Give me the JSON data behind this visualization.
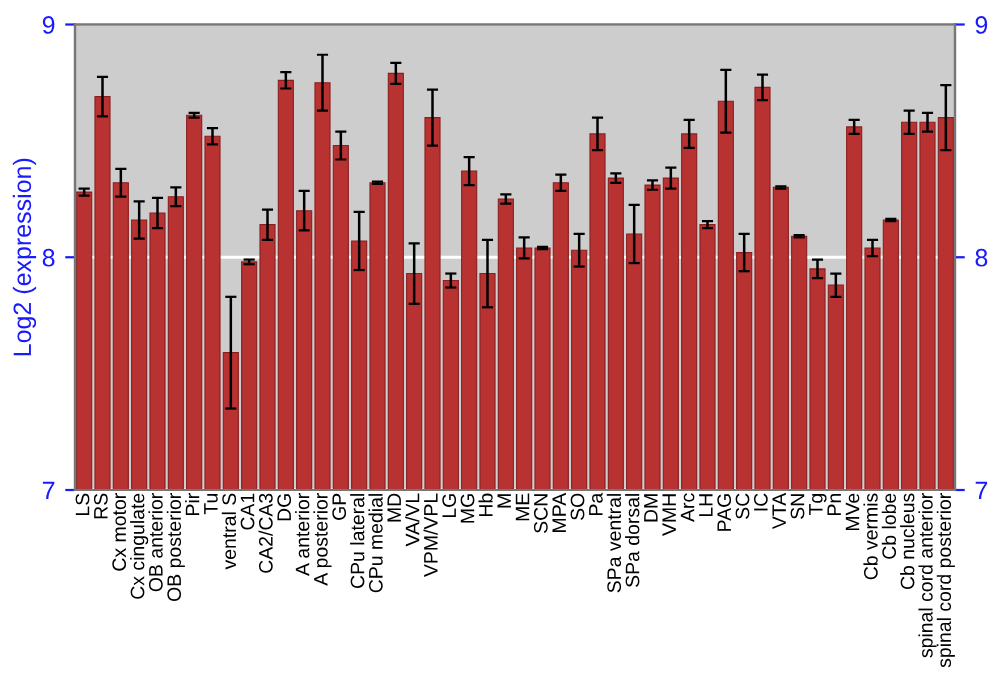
{
  "chart_data": {
    "type": "bar",
    "ylabel": "Log2 (expression)",
    "categories": [
      "LS",
      "RS",
      "Cx motor",
      "Cx cingulate",
      "OB anterior",
      "OB posterior",
      "Pir",
      "Tu",
      "ventral S",
      "CA1",
      "CA2/CA3",
      "DG",
      "A anterior",
      "A posterior",
      "GP",
      "CPu lateral",
      "CPu medial",
      "MD",
      "VA/VL",
      "VPM/VPL",
      "LG",
      "MG",
      "Hb",
      "M",
      "ME",
      "SCN",
      "MPA",
      "SO",
      "Pa",
      "SPa ventral",
      "SPa dorsal",
      "DM",
      "VMH",
      "Arc",
      "LH",
      "PAG",
      "SC",
      "IC",
      "VTA",
      "SN",
      "Tg",
      "Pn",
      "MVe",
      "Cb vermis",
      "Cb lobe",
      "Cb nucleus",
      "spinal cord anterior",
      "spinal cord posterior"
    ],
    "values": [
      8.28,
      8.69,
      8.32,
      8.16,
      8.19,
      8.26,
      8.61,
      8.52,
      7.59,
      7.98,
      8.14,
      8.76,
      8.2,
      8.75,
      8.48,
      8.07,
      8.32,
      8.79,
      7.93,
      8.6,
      7.9,
      8.37,
      7.93,
      8.25,
      8.04,
      8.04,
      8.32,
      8.03,
      8.53,
      8.34,
      8.1,
      8.31,
      8.34,
      8.53,
      8.14,
      8.67,
      8.02,
      8.73,
      8.3,
      8.09,
      7.95,
      7.88,
      8.56,
      8.04,
      8.16,
      8.58,
      8.58,
      8.6
    ],
    "errors": [
      0.015,
      0.085,
      0.06,
      0.08,
      0.065,
      0.04,
      0.01,
      0.035,
      0.24,
      0.01,
      0.065,
      0.035,
      0.085,
      0.12,
      0.06,
      0.125,
      0.005,
      0.045,
      0.13,
      0.12,
      0.03,
      0.06,
      0.145,
      0.02,
      0.045,
      0.005,
      0.035,
      0.07,
      0.07,
      0.02,
      0.125,
      0.02,
      0.045,
      0.06,
      0.015,
      0.135,
      0.08,
      0.055,
      0.005,
      0.005,
      0.04,
      0.05,
      0.03,
      0.035,
      0.005,
      0.05,
      0.04,
      0.14
    ],
    "color": "#b83232",
    "ylim": [
      7,
      9
    ],
    "yticks": [
      7,
      8,
      9
    ],
    "y2lim": [
      7,
      9
    ],
    "y2ticks": [
      7,
      8,
      9
    ],
    "grid": "y"
  }
}
